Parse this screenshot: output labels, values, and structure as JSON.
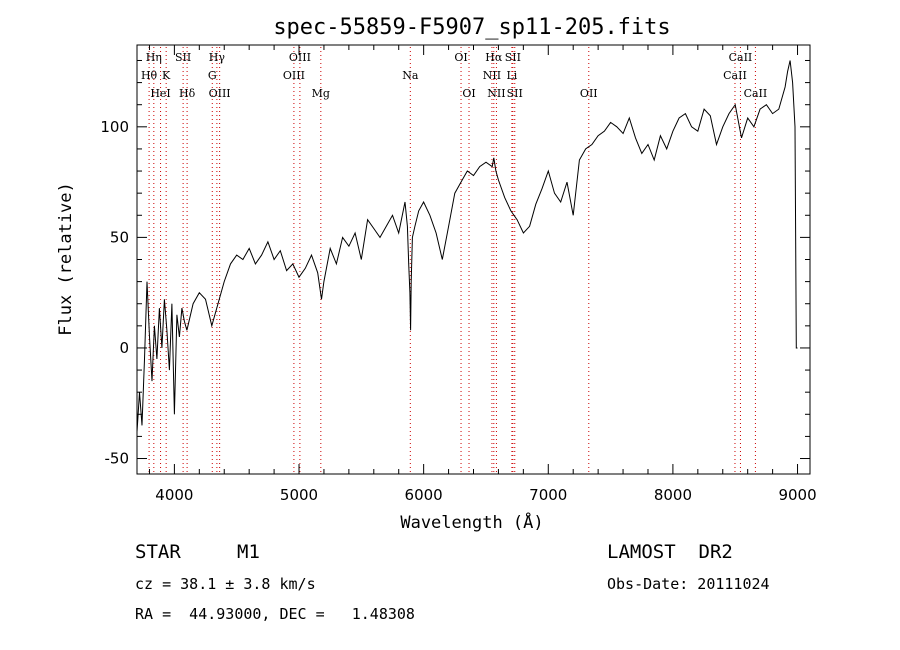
{
  "chart_data": {
    "type": "line",
    "title": "spec-55859-F5907_sp11-205.fits",
    "xlabel": "Wavelength (Å)",
    "ylabel": "Flux (relative)",
    "xlim": [
      3700,
      9100
    ],
    "ylim": [
      -57,
      137
    ],
    "xticks": [
      4000,
      5000,
      6000,
      7000,
      8000,
      9000
    ],
    "yticks": [
      -50,
      0,
      50,
      100
    ],
    "grid": false,
    "line_color": "#000000",
    "marker_color": "#cc0000",
    "series": [
      {
        "x": [
          3700,
          3720,
          3740,
          3760,
          3780,
          3800,
          3820,
          3840,
          3860,
          3880,
          3900,
          3920,
          3940,
          3960,
          3980,
          4000,
          4020,
          4040,
          4060,
          4080,
          4100,
          4150,
          4200,
          4250,
          4300,
          4350,
          4400,
          4450,
          4500,
          4550,
          4600,
          4650,
          4700,
          4750,
          4800,
          4850,
          4900,
          4950,
          5000,
          5050,
          5100,
          5150,
          5180,
          5200,
          5250,
          5300,
          5350,
          5400,
          5450,
          5500,
          5550,
          5600,
          5650,
          5700,
          5750,
          5800,
          5850,
          5870,
          5880,
          5890,
          5895,
          5900,
          5910,
          5930,
          5960,
          6000,
          6050,
          6100,
          6150,
          6200,
          6250,
          6300,
          6350,
          6400,
          6450,
          6500,
          6550,
          6563,
          6580,
          6600,
          6650,
          6700,
          6750,
          6800,
          6850,
          6900,
          6950,
          7000,
          7050,
          7100,
          7150,
          7200,
          7250,
          7300,
          7350,
          7400,
          7450,
          7500,
          7550,
          7600,
          7650,
          7700,
          7750,
          7800,
          7850,
          7900,
          7950,
          8000,
          8050,
          8100,
          8150,
          8200,
          8250,
          8300,
          8350,
          8400,
          8450,
          8500,
          8550,
          8600,
          8650,
          8700,
          8750,
          8800,
          8850,
          8900,
          8920,
          8940,
          8960,
          8980,
          8990,
          9000
        ],
        "y": [
          -38,
          -20,
          -35,
          -5,
          30,
          5,
          -15,
          10,
          -5,
          18,
          0,
          22,
          8,
          -10,
          20,
          -30,
          15,
          5,
          18,
          12,
          8,
          20,
          25,
          22,
          10,
          20,
          30,
          38,
          42,
          40,
          45,
          38,
          42,
          48,
          40,
          44,
          35,
          38,
          32,
          36,
          42,
          34,
          22,
          30,
          45,
          38,
          50,
          46,
          52,
          40,
          58,
          54,
          50,
          55,
          60,
          52,
          66,
          55,
          38,
          25,
          8,
          30,
          50,
          55,
          62,
          66,
          60,
          52,
          40,
          55,
          70,
          75,
          80,
          78,
          82,
          84,
          82,
          86,
          80,
          76,
          68,
          62,
          58,
          52,
          55,
          65,
          72,
          80,
          70,
          66,
          75,
          60,
          85,
          90,
          92,
          96,
          98,
          102,
          100,
          97,
          104,
          95,
          88,
          92,
          85,
          96,
          90,
          98,
          104,
          106,
          100,
          98,
          108,
          105,
          92,
          100,
          106,
          110,
          95,
          104,
          100,
          108,
          110,
          106,
          108,
          118,
          125,
          130,
          120,
          100,
          0,
          0
        ]
      }
    ],
    "emission_lines": [
      {
        "label": "Hη",
        "wave": 3835,
        "row": 1
      },
      {
        "label": "Hθ",
        "wave": 3797,
        "row": 2
      },
      {
        "label": "K",
        "wave": 3934,
        "row": 2
      },
      {
        "label": "HeI",
        "wave": 3889,
        "row": 3
      },
      {
        "label": "SII",
        "wave": 4070,
        "row": 1
      },
      {
        "label": "Hδ",
        "wave": 4102,
        "row": 3
      },
      {
        "label": "Hγ",
        "wave": 4341,
        "row": 1
      },
      {
        "label": "G",
        "wave": 4304,
        "row": 2
      },
      {
        "label": "OIII",
        "wave": 4363,
        "row": 3
      },
      {
        "label": "OIII",
        "wave": 5007,
        "row": 1
      },
      {
        "label": "OIII",
        "wave": 4959,
        "row": 2
      },
      {
        "label": "Mg",
        "wave": 5175,
        "row": 3
      },
      {
        "label": "Na",
        "wave": 5893,
        "row": 2
      },
      {
        "label": "OI",
        "wave": 6300,
        "row": 1
      },
      {
        "label": "OI",
        "wave": 6364,
        "row": 3
      },
      {
        "label": "Hα",
        "wave": 6563,
        "row": 1
      },
      {
        "label": "SII",
        "wave": 6716,
        "row": 1
      },
      {
        "label": "NII",
        "wave": 6548,
        "row": 2
      },
      {
        "label": "Li",
        "wave": 6708,
        "row": 2
      },
      {
        "label": "NII",
        "wave": 6584,
        "row": 3
      },
      {
        "label": "SII",
        "wave": 6731,
        "row": 3
      },
      {
        "label": "OII",
        "wave": 7325,
        "row": 3
      },
      {
        "label": "CaII",
        "wave": 8542,
        "row": 1
      },
      {
        "label": "CaII",
        "wave": 8498,
        "row": 2
      },
      {
        "label": "CaII",
        "wave": 8662,
        "row": 3
      }
    ]
  },
  "info": {
    "object_class": "STAR",
    "subclass": "M1",
    "survey": "LAMOST  DR2",
    "redshift": "cz = 38.1 ± 3.8 km/s",
    "obs_date": "Obs-Date: 20111024",
    "coords": "RA =  44.93000, DEC =   1.48308"
  }
}
